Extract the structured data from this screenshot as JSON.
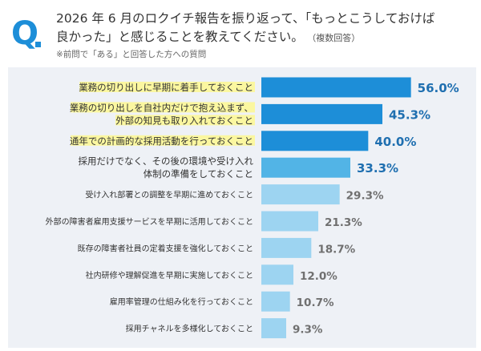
{
  "header": {
    "q_mark": "Q",
    "title_line1": "2026 年 6 月のロクイチ報告を振り返って、「もっとこうしておけば",
    "title_line2": "良かった」と感じることを教えてください。",
    "multi_answer": "（複数回答）",
    "note": "※前問で「ある」と回答した方への質問"
  },
  "colors": {
    "bar_top": "#1d8ed8",
    "bar_mid": "#52b4e6",
    "bar_low": "#9dd4f1",
    "highlight": "#fbf7a0",
    "value_dark": "#1f6fb0",
    "value_light": "#707070",
    "accent": "#1d8ed8"
  },
  "chart_data": {
    "type": "bar",
    "orientation": "horizontal",
    "unit": "%",
    "xlim": [
      0,
      60
    ],
    "grid": false,
    "legend": "none",
    "categories": [
      [
        "業務の切り出しに早期に着手しておくこと"
      ],
      [
        "業務の切り出しを自社内だけで抱え込まず、",
        "外部の知見も取り入れておくこと"
      ],
      [
        "通年での計画的な採用活動を行っておくこと"
      ],
      [
        "採用だけでなく、その後の環境や受け入れ",
        "体制の準備をしておくこと"
      ],
      [
        "受け入れ部署との調整を早期に進めておくこと"
      ],
      [
        "外部の障害者雇用支援サービスを早期に活用しておくこと"
      ],
      [
        "既存の障害者社員の定着支援を強化しておくこと"
      ],
      [
        "社内研修や理解促進を早期に実施しておくこと"
      ],
      [
        "雇用率管理の仕組み化を行っておくこと"
      ],
      [
        "採用チャネルを多様化しておくこと"
      ]
    ],
    "values": [
      56.0,
      45.3,
      40.0,
      33.3,
      29.3,
      21.3,
      18.7,
      12.0,
      10.7,
      9.3
    ],
    "value_labels": [
      "56.0%",
      "45.3%",
      "40.0%",
      "33.3%",
      "29.3%",
      "21.3%",
      "18.7%",
      "12.0%",
      "10.7%",
      "9.3%"
    ],
    "highlighted": [
      true,
      true,
      true,
      false,
      false,
      false,
      false,
      false,
      false,
      false
    ],
    "tier": [
      "top",
      "top",
      "top",
      "mid",
      "low",
      "low",
      "low",
      "low",
      "low",
      "low"
    ]
  }
}
